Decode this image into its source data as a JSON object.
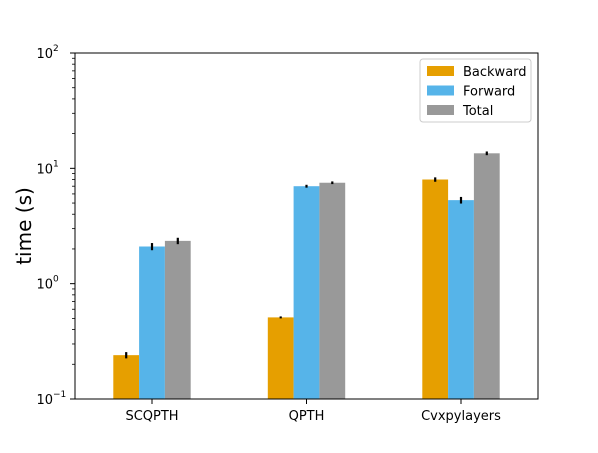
{
  "chart_data": {
    "type": "bar",
    "title": "",
    "xlabel": "",
    "ylabel": "time (s)",
    "yscale": "log",
    "ylim": [
      0.1,
      100
    ],
    "categories": [
      "SCQPTH",
      "QPTH",
      "Cvxpylayers"
    ],
    "series": [
      {
        "name": "Backward",
        "color": "#E69F00",
        "values": [
          0.24,
          0.51,
          8.0
        ],
        "err": [
          0.015,
          0.01,
          0.35
        ]
      },
      {
        "name": "Forward",
        "color": "#56B4E9",
        "values": [
          2.1,
          7.0,
          5.3
        ],
        "err": [
          0.15,
          0.2,
          0.35
        ]
      },
      {
        "name": "Total",
        "color": "#999999",
        "values": [
          2.35,
          7.5,
          13.5
        ],
        "err": [
          0.15,
          0.2,
          0.5
        ]
      }
    ],
    "yticks": [
      {
        "value": 0.1,
        "base": "10",
        "exp": "−1"
      },
      {
        "value": 1,
        "base": "10",
        "exp": "0"
      },
      {
        "value": 10,
        "base": "10",
        "exp": "1"
      },
      {
        "value": 100,
        "base": "10",
        "exp": "2"
      }
    ],
    "legend_position": "top-right",
    "grid": false
  }
}
